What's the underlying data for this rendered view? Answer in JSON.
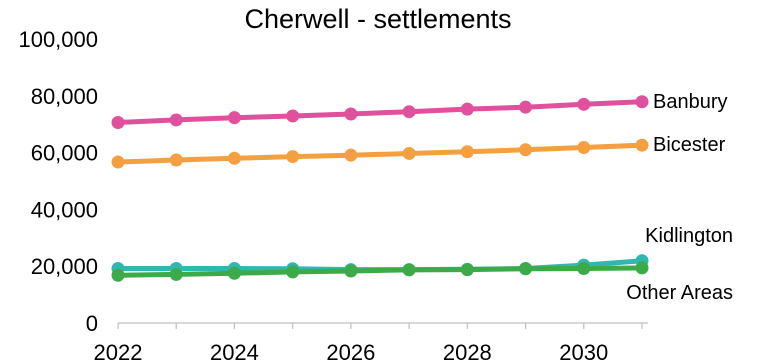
{
  "chart_data": {
    "type": "line",
    "title": "Cherwell - settlements",
    "xlabel": "",
    "ylabel": "",
    "x": [
      2022,
      2023,
      2024,
      2025,
      2026,
      2027,
      2028,
      2029,
      2030,
      2031
    ],
    "xticks": [
      "2022",
      "2024",
      "2026",
      "2028",
      "2030"
    ],
    "yticks": [
      "0",
      "20,000",
      "40,000",
      "60,000",
      "80,000",
      "100,000"
    ],
    "ylim": [
      0,
      100000
    ],
    "grid": false,
    "legend": "direct-labels-right",
    "series": [
      {
        "name": "Banbury",
        "color": "#e0509c",
        "values": [
          70600,
          71500,
          72300,
          72900,
          73600,
          74400,
          75300,
          76000,
          77000,
          77900
        ]
      },
      {
        "name": "Bicester",
        "color": "#f5a040",
        "values": [
          56700,
          57400,
          58000,
          58600,
          59100,
          59700,
          60300,
          61000,
          61800,
          62600
        ]
      },
      {
        "name": "Kidlington",
        "color": "#2fb8b0",
        "values": [
          19200,
          19200,
          19200,
          19100,
          18800,
          18800,
          18900,
          19200,
          20400,
          21900
        ]
      },
      {
        "name": "Other Areas",
        "color": "#3daa4a",
        "values": [
          16800,
          17100,
          17500,
          18000,
          18300,
          18700,
          18800,
          19100,
          19200,
          19400
        ]
      }
    ]
  }
}
